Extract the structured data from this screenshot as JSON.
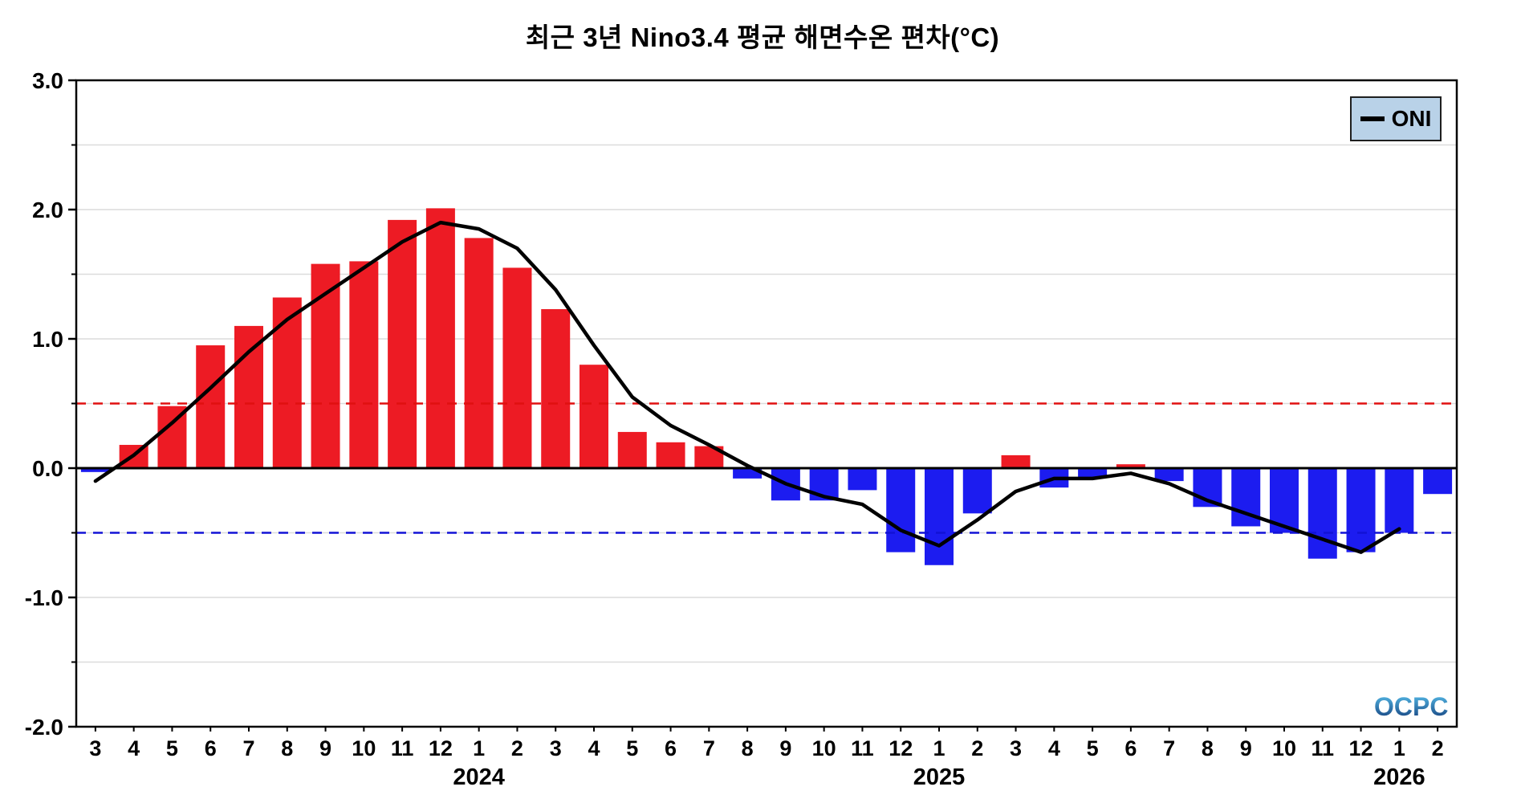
{
  "chart_data": {
    "type": "bar+line",
    "title": "최근 3년 Nino3.4 평균 해면수온 편차(°C)",
    "legend_label": "ONI",
    "watermark": "OCPC",
    "ylim": [
      -2.0,
      3.0
    ],
    "yticks": [
      3.0,
      2.0,
      1.0,
      0.0,
      -1.0,
      -2.0
    ],
    "ytick_labels": [
      "3.0",
      "2.0",
      "1.0",
      "0.0",
      "-1.0",
      "-2.0"
    ],
    "months": [
      "3",
      "4",
      "5",
      "6",
      "7",
      "8",
      "9",
      "10",
      "11",
      "12",
      "1",
      "2",
      "3",
      "4",
      "5",
      "6",
      "7",
      "8",
      "9",
      "10",
      "11",
      "12",
      "1",
      "2",
      "3",
      "4",
      "5",
      "6",
      "7",
      "8",
      "9",
      "10",
      "11",
      "12",
      "1",
      "2"
    ],
    "year_markers": [
      {
        "label": "2024",
        "index": 10
      },
      {
        "label": "2025",
        "index": 22
      },
      {
        "label": "2026",
        "index": 34
      }
    ],
    "series": [
      {
        "name": "monthly_sst_anomaly",
        "type": "bar",
        "values": [
          -0.03,
          0.18,
          0.48,
          0.95,
          1.1,
          1.32,
          1.58,
          1.6,
          1.92,
          2.01,
          1.78,
          1.55,
          1.23,
          0.8,
          0.28,
          0.2,
          0.17,
          -0.08,
          -0.25,
          -0.25,
          -0.17,
          -0.65,
          -0.75,
          -0.35,
          0.1,
          -0.15,
          -0.07,
          0.03,
          -0.1,
          -0.3,
          -0.45,
          -0.5,
          -0.7,
          -0.65,
          -0.5,
          -0.2
        ]
      },
      {
        "name": "ONI",
        "type": "line",
        "values": [
          -0.1,
          0.1,
          0.35,
          0.62,
          0.9,
          1.15,
          1.35,
          1.55,
          1.75,
          1.9,
          1.85,
          1.7,
          1.38,
          0.95,
          0.55,
          0.33,
          0.18,
          0.02,
          -0.12,
          -0.22,
          -0.28,
          -0.48,
          -0.6,
          -0.4,
          -0.18,
          -0.08,
          -0.08,
          -0.04,
          -0.12,
          -0.25,
          -0.35,
          -0.45,
          -0.55,
          -0.65,
          -0.47
        ]
      }
    ],
    "thresholds": [
      {
        "name": "elnino",
        "value": 0.5,
        "color": "#e01010",
        "style": "dashed"
      },
      {
        "name": "lanina",
        "value": -0.5,
        "color": "#1212d6",
        "style": "dashed"
      }
    ],
    "colors": {
      "bar_positive": "#ed1b24",
      "bar_negative": "#1c1cf0",
      "line": "#000000",
      "zero_line": "#000000",
      "legend_bg": "#b9d2e8"
    },
    "grid": {
      "step": 0.5,
      "color": "#dcdcdc",
      "on": true
    },
    "legend_position": "top-right"
  }
}
